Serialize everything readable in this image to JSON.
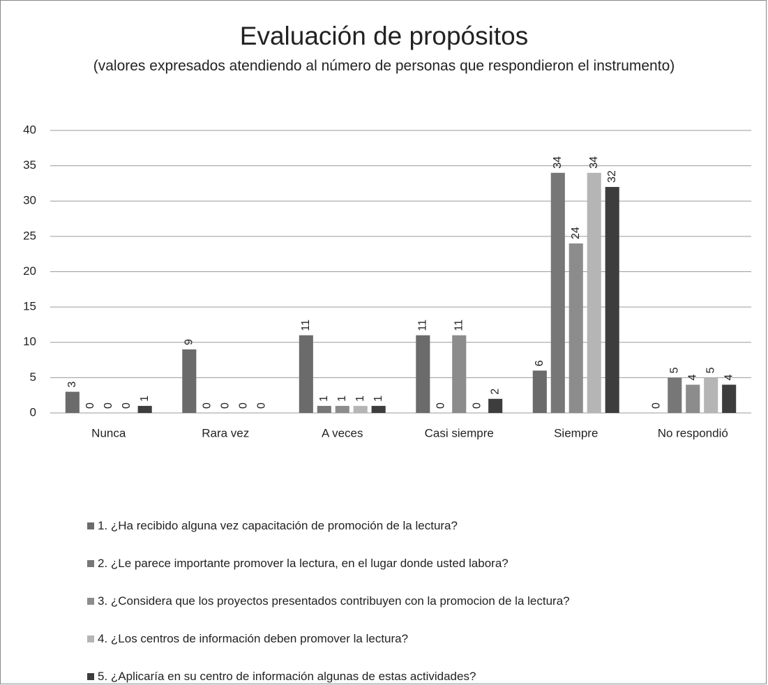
{
  "chart_data": {
    "type": "bar",
    "title": "Evaluación de propósitos",
    "subtitle": "(valores expresados atendiendo al número de personas que respondieron el instrumento)",
    "categories": [
      "Nunca",
      "Rara vez",
      "A veces",
      "Casi siempre",
      "Siempre",
      "No respondió"
    ],
    "series": [
      {
        "name": "1. ¿Ha recibido alguna vez capacitación de promoción de la lectura?",
        "color": "#6b6b6b",
        "values": [
          3,
          9,
          11,
          11,
          6,
          0
        ]
      },
      {
        "name": "2. ¿Le parece importante promover la lectura, en el lugar  donde usted labora?",
        "color": "#777777",
        "values": [
          0,
          0,
          1,
          0,
          34,
          5
        ]
      },
      {
        "name": "3. ¿Considera que los proyectos presentados contribuyen con la promocion de la lectura?",
        "color": "#8c8c8c",
        "values": [
          0,
          0,
          1,
          11,
          24,
          4
        ]
      },
      {
        "name": "4. ¿Los centros de información deben promover la lectura?",
        "color": "#b5b5b5",
        "values": [
          0,
          0,
          1,
          0,
          34,
          5
        ]
      },
      {
        "name": "5. ¿Aplicaría en su centro de información algunas de estas actividades?",
        "color": "#3d3d3d",
        "values": [
          1,
          0,
          1,
          2,
          32,
          4
        ]
      }
    ],
    "ylim": [
      0,
      40
    ],
    "yticks": [
      0,
      5,
      10,
      15,
      20,
      25,
      30,
      35,
      40
    ],
    "grid": true,
    "legend": "bottom"
  }
}
